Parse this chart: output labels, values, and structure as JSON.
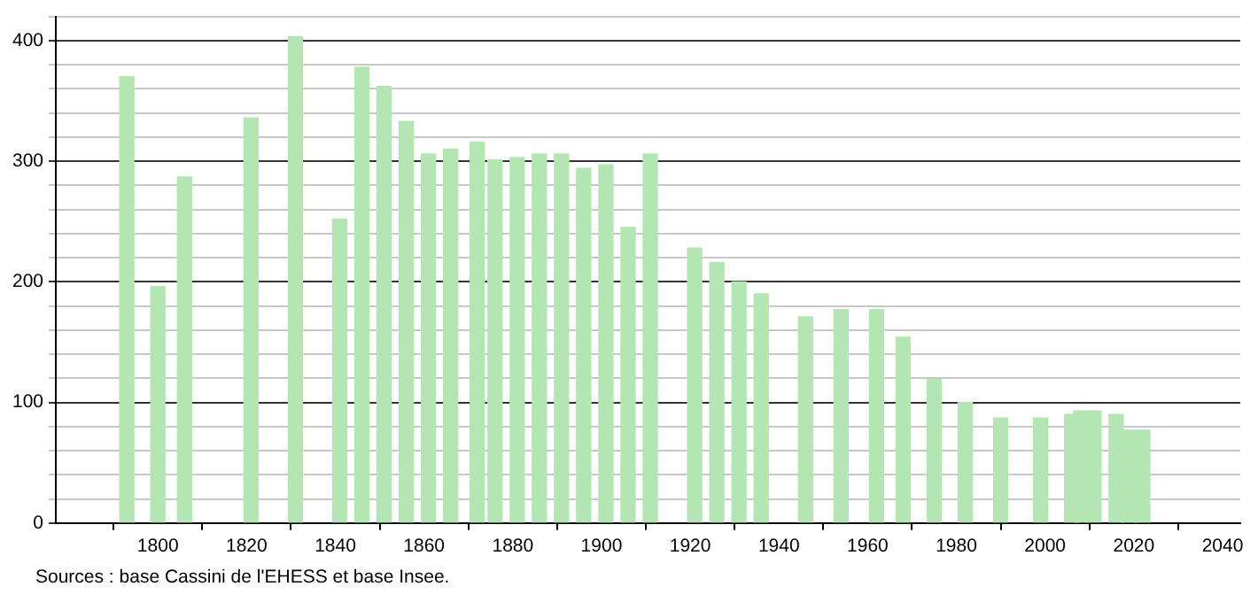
{
  "chart_data": {
    "type": "bar",
    "x": [
      1793,
      1800,
      1806,
      1821,
      1831,
      1841,
      1846,
      1851,
      1856,
      1861,
      1866,
      1872,
      1876,
      1881,
      1886,
      1891,
      1896,
      1901,
      1906,
      1911,
      1921,
      1926,
      1931,
      1936,
      1946,
      1954,
      1962,
      1968,
      1975,
      1982,
      1990,
      1999,
      2006,
      2008,
      2011,
      2016,
      2019,
      2022
    ],
    "values": [
      370,
      196,
      287,
      336,
      403,
      252,
      378,
      362,
      333,
      306,
      310,
      316,
      301,
      303,
      306,
      306,
      294,
      297,
      245,
      306,
      228,
      216,
      200,
      190,
      171,
      177,
      177,
      154,
      119,
      100,
      87,
      87,
      90,
      93,
      93,
      90,
      77,
      77
    ],
    "color": "#b3e6b3",
    "xlim": [
      1777,
      2044
    ],
    "xticks": [
      1800,
      1820,
      1840,
      1860,
      1880,
      1900,
      1920,
      1940,
      1960,
      1980,
      2000,
      2020,
      2040
    ],
    "ylim": [
      0,
      420
    ],
    "yticks": [
      0,
      {
        "value": 20,
        "label": null
      },
      {
        "value": 40,
        "label": null
      },
      {
        "value": 60,
        "label": null
      },
      {
        "value": 80,
        "label": null
      },
      100,
      {
        "value": 120,
        "label": null
      },
      {
        "value": 140,
        "label": null
      },
      {
        "value": 160,
        "label": null
      },
      {
        "value": 180,
        "label": null
      },
      200,
      {
        "value": 220,
        "label": null
      },
      {
        "value": 240,
        "label": null
      },
      {
        "value": 260,
        "label": null
      },
      {
        "value": 280,
        "label": null
      },
      300,
      {
        "value": 320,
        "label": null
      },
      {
        "value": 340,
        "label": null
      },
      {
        "value": 360,
        "label": null
      },
      {
        "value": 380,
        "label": null
      },
      400,
      {
        "value": 420,
        "label": null
      }
    ],
    "grid": "y",
    "annotations": [
      "Sources : base Cassini de l'EHESS et base Insee."
    ]
  }
}
